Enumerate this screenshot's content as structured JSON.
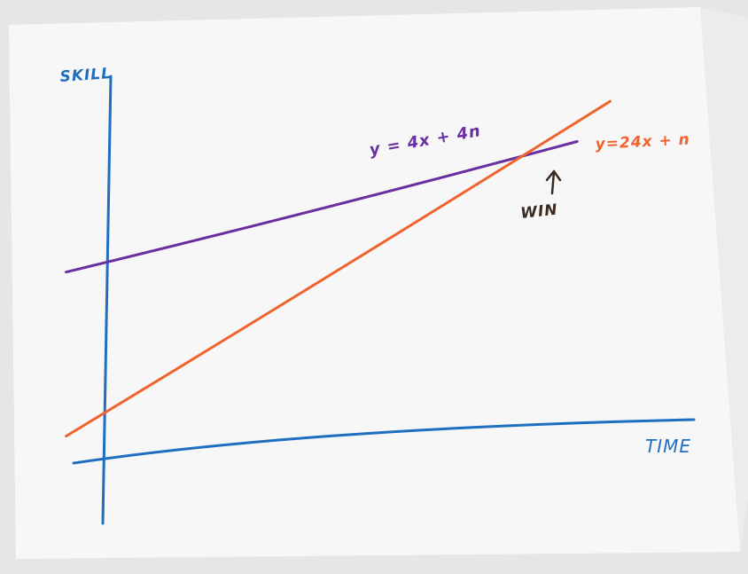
{
  "chart_data": {
    "type": "line",
    "title": "",
    "xlabel": "TIME",
    "ylabel": "SKILL",
    "xlim": [
      0,
      10
    ],
    "ylim": [
      0,
      10
    ],
    "grid": false,
    "series": [
      {
        "name": "y = 4x + 4n",
        "color": "#6a2fa0",
        "x": [
          -0.7,
          8.6
        ],
        "y": [
          5.2,
          8.8
        ]
      },
      {
        "name": "y=24x + n",
        "color": "#f0632c",
        "x": [
          -0.7,
          9.2
        ],
        "y": [
          0.2,
          10.0
        ]
      }
    ],
    "annotations": [
      {
        "text": "WIN",
        "arrow": "up",
        "points_to": "intersection",
        "color": "#3a2a20"
      }
    ]
  }
}
